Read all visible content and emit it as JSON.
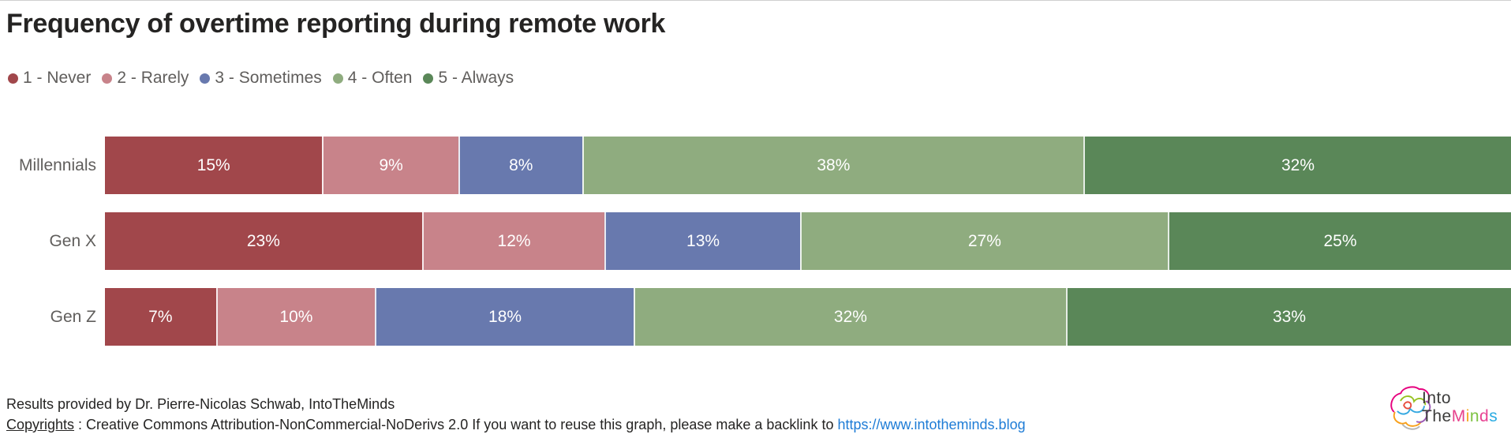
{
  "title": "Frequency of overtime reporting during remote work",
  "chart_data": {
    "type": "bar",
    "variant": "stacked-horizontal-100",
    "title": "Frequency of overtime reporting during remote work",
    "categories": [
      "Millennials",
      "Gen X",
      "Gen Z"
    ],
    "series": [
      {
        "name": "1 - Never",
        "color": "#A1474B",
        "values": [
          15,
          23,
          7
        ]
      },
      {
        "name": "2 - Rarely",
        "color": "#C8838A",
        "values": [
          9,
          12,
          10
        ]
      },
      {
        "name": "3 - Sometimes",
        "color": "#6879AE",
        "values": [
          8,
          13,
          18
        ]
      },
      {
        "name": "4 - Often",
        "color": "#8FAC7F",
        "values": [
          38,
          27,
          32
        ]
      },
      {
        "name": "5 - Always",
        "color": "#5A8758",
        "values": [
          32,
          25,
          33
        ]
      }
    ],
    "value_suffix": "%",
    "legend_position": "top-left",
    "grid": false,
    "text_colors": {
      "category_label": "#605E5C",
      "value_label": "#ffffff",
      "legend": "#605E5C"
    }
  },
  "footer": {
    "line1": "Results provided by Dr. Pierre-Nicolas Schwab, IntoTheMinds",
    "copyrights_label": "Copyrights",
    "line2_text": " : Creative Commons Attribution-NonCommercial-NoDerivs 2.0 If you want to reuse this graph, please make a backlink to ",
    "link_text": "https://www.intotheminds.blog",
    "link_color": "#1E7CD6"
  },
  "logo": {
    "word1": "Into",
    "word2": "The",
    "word3_letters": [
      {
        "char": "M",
        "color": "#E6428C"
      },
      {
        "char": "i",
        "color": "#F5A623"
      },
      {
        "char": "n",
        "color": "#7DC242"
      },
      {
        "char": "d",
        "color": "#E84393"
      },
      {
        "char": "s",
        "color": "#29ABE2"
      }
    ],
    "brain_colors": [
      "#E6007E",
      "#F8A01B",
      "#95C11F",
      "#36A9E1",
      "#9B59B6",
      "#E74C3C",
      "#b5b5b5"
    ]
  }
}
